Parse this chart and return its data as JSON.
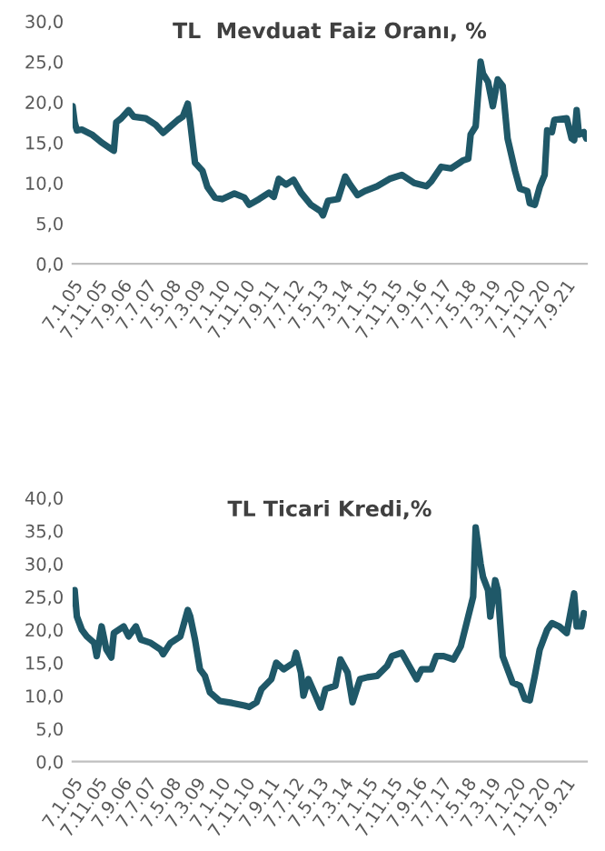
{
  "chart_data": [
    {
      "type": "line",
      "title": "TL  Mevduat Faiz Oranı, %",
      "legend": false,
      "grid": false,
      "line_style": "solid",
      "ylim": [
        0,
        30
      ],
      "yticks": [
        {
          "value": 0,
          "label": "0,0"
        },
        {
          "value": 5,
          "label": "5,0"
        },
        {
          "value": 10,
          "label": "10,0"
        },
        {
          "value": 15,
          "label": "15,0"
        },
        {
          "value": 20,
          "label": "20,0"
        },
        {
          "value": 25,
          "label": "25,0"
        },
        {
          "value": 30,
          "label": "30,0"
        }
      ],
      "xlim": [
        "2005-01-07",
        "2022-06-07"
      ],
      "xticks": [
        {
          "value": "2005-01-07",
          "label": "7.1.05"
        },
        {
          "value": "2005-11-07",
          "label": "7.11.05"
        },
        {
          "value": "2006-09-07",
          "label": "7.9.06"
        },
        {
          "value": "2007-07-07",
          "label": "7.7.07"
        },
        {
          "value": "2008-05-07",
          "label": "7.5.08"
        },
        {
          "value": "2009-03-07",
          "label": "7.3.09"
        },
        {
          "value": "2010-01-07",
          "label": "7.1.10"
        },
        {
          "value": "2010-11-07",
          "label": "7.11.10"
        },
        {
          "value": "2011-09-07",
          "label": "7.9.11"
        },
        {
          "value": "2012-07-07",
          "label": "7.7.12"
        },
        {
          "value": "2013-05-07",
          "label": "7.5.13"
        },
        {
          "value": "2014-03-07",
          "label": "7.3.14"
        },
        {
          "value": "2015-01-07",
          "label": "7.1.15"
        },
        {
          "value": "2015-11-07",
          "label": "7.11.15"
        },
        {
          "value": "2016-09-07",
          "label": "7.9.16"
        },
        {
          "value": "2017-07-07",
          "label": "7.7.17"
        },
        {
          "value": "2018-05-07",
          "label": "7.5.18"
        },
        {
          "value": "2019-03-07",
          "label": "7.3.19"
        },
        {
          "value": "2020-01-07",
          "label": "7.1.20"
        },
        {
          "value": "2020-11-07",
          "label": "7.11.20"
        },
        {
          "value": "2021-09-07",
          "label": "7.9.21"
        }
      ],
      "series": [
        {
          "color": "#1f5868",
          "x": [
            "2005-01-07",
            "2005-02",
            "2005-03",
            "2005-05",
            "2005-09",
            "2006-01",
            "2006-05",
            "2006-06",
            "2006-07",
            "2006-09",
            "2006-12",
            "2007-02",
            "2007-07",
            "2007-11",
            "2008-02",
            "2008-05",
            "2008-08",
            "2008-10",
            "2008-12",
            "2009-01",
            "2009-03",
            "2009-06",
            "2009-08",
            "2009-11",
            "2010-02",
            "2010-07",
            "2010-11",
            "2011-01",
            "2011-05",
            "2011-09",
            "2011-11",
            "2012-01",
            "2012-04",
            "2012-07",
            "2012-10",
            "2013-02",
            "2013-06",
            "2013-07",
            "2013-09",
            "2014-01",
            "2014-04",
            "2014-06",
            "2014-09",
            "2014-12",
            "2015-05",
            "2015-10",
            "2016-03",
            "2016-08",
            "2017-01",
            "2017-03",
            "2017-07",
            "2017-11",
            "2018-04",
            "2018-06",
            "2018-07",
            "2018-09",
            "2018-11",
            "2018-12",
            "2019-02",
            "2019-04",
            "2019-06",
            "2019-08",
            "2019-10",
            "2020-01",
            "2020-03",
            "2020-06",
            "2020-07",
            "2020-09",
            "2020-11",
            "2021-01",
            "2021-02",
            "2021-04",
            "2021-05",
            "2021-10",
            "2021-12",
            "2022-01",
            "2022-02",
            "2022-03",
            "2022-05",
            "2022-06"
          ],
          "values": [
            19.5,
            17.5,
            16.5,
            16.6,
            16.0,
            15.0,
            14.2,
            14.0,
            17.5,
            18.0,
            19.0,
            18.2,
            18.0,
            17.2,
            16.2,
            17.0,
            17.8,
            18.2,
            19.8,
            17.5,
            12.5,
            11.5,
            9.5,
            8.2,
            8.0,
            8.7,
            8.2,
            7.3,
            8.0,
            8.8,
            8.3,
            10.5,
            9.8,
            10.4,
            8.8,
            7.3,
            6.5,
            6.0,
            7.8,
            8.0,
            10.8,
            9.8,
            8.5,
            9.0,
            9.6,
            10.5,
            11.0,
            10.0,
            9.6,
            10.2,
            12.0,
            11.8,
            12.8,
            13.0,
            16.0,
            17.0,
            25.0,
            23.5,
            22.5,
            19.5,
            22.8,
            22.0,
            15.5,
            11.5,
            9.3,
            9.0,
            7.5,
            7.3,
            9.5,
            11.0,
            16.5,
            16.3,
            17.8,
            18.0,
            15.5,
            15.3,
            19.0,
            16.0,
            16.3,
            15.5
          ]
        }
      ]
    },
    {
      "type": "line",
      "title": "TL Ticari Kredi,%",
      "legend": false,
      "grid": false,
      "line_style": "solid",
      "ylim": [
        0,
        40
      ],
      "yticks": [
        {
          "value": 0,
          "label": "0,0"
        },
        {
          "value": 5,
          "label": "5,0"
        },
        {
          "value": 10,
          "label": "10,0"
        },
        {
          "value": 15,
          "label": "15,0"
        },
        {
          "value": 20,
          "label": "20,0"
        },
        {
          "value": 25,
          "label": "25,0"
        },
        {
          "value": 30,
          "label": "30,0"
        },
        {
          "value": 35,
          "label": "35,0"
        },
        {
          "value": 40,
          "label": "40,0"
        }
      ],
      "xlim": [
        "2005-01-07",
        "2022-06-07"
      ],
      "xticks": [
        {
          "value": "2005-01-07",
          "label": "7.1.05"
        },
        {
          "value": "2005-11-07",
          "label": "7.11.05"
        },
        {
          "value": "2006-09-07",
          "label": "7.9.06"
        },
        {
          "value": "2007-07-07",
          "label": "7.7.07"
        },
        {
          "value": "2008-05-07",
          "label": "7.5.08"
        },
        {
          "value": "2009-03-07",
          "label": "7.3.09"
        },
        {
          "value": "2010-01-07",
          "label": "7.1.10"
        },
        {
          "value": "2010-11-07",
          "label": "7.11.10"
        },
        {
          "value": "2011-09-07",
          "label": "7.9.11"
        },
        {
          "value": "2012-07-07",
          "label": "7.7.12"
        },
        {
          "value": "2013-05-07",
          "label": "7.5.13"
        },
        {
          "value": "2014-03-07",
          "label": "7.3.14"
        },
        {
          "value": "2015-01-07",
          "label": "7.1.15"
        },
        {
          "value": "2015-11-07",
          "label": "7.11.15"
        },
        {
          "value": "2016-09-07",
          "label": "7.9.16"
        },
        {
          "value": "2017-07-07",
          "label": "7.7.17"
        },
        {
          "value": "2018-05-07",
          "label": "7.5.18"
        },
        {
          "value": "2019-03-07",
          "label": "7.3.19"
        },
        {
          "value": "2020-01-07",
          "label": "7.1.20"
        },
        {
          "value": "2020-11-07",
          "label": "7.11.20"
        },
        {
          "value": "2021-09-07",
          "label": "7.9.21"
        }
      ],
      "series": [
        {
          "color": "#1f5868",
          "x": [
            "2005-01-07",
            "2005-02",
            "2005-03",
            "2005-05",
            "2005-07",
            "2005-10",
            "2005-11",
            "2006-01",
            "2006-03",
            "2006-05",
            "2006-06",
            "2006-10",
            "2006-12",
            "2007-03",
            "2007-05",
            "2007-09",
            "2008-01",
            "2008-02",
            "2008-05",
            "2008-09",
            "2008-12",
            "2009-01",
            "2009-03",
            "2009-05",
            "2009-07",
            "2009-09",
            "2010-01",
            "2010-06",
            "2010-11",
            "2011-01",
            "2011-04",
            "2011-06",
            "2011-10",
            "2011-12",
            "2012-03",
            "2012-07",
            "2012-08",
            "2012-10",
            "2012-11",
            "2013-01",
            "2013-04",
            "2013-06",
            "2013-08",
            "2013-12",
            "2014-02",
            "2014-05",
            "2014-07",
            "2014-10",
            "2015-01",
            "2015-05",
            "2015-09",
            "2015-11",
            "2016-03",
            "2016-06",
            "2016-09",
            "2016-11",
            "2017-03",
            "2017-05",
            "2017-08",
            "2017-12",
            "2018-03",
            "2018-06",
            "2018-08",
            "2018-09",
            "2018-11",
            "2018-12",
            "2019-02",
            "2019-03",
            "2019-05",
            "2019-06",
            "2019-08",
            "2019-10",
            "2019-12",
            "2020-03",
            "2020-05",
            "2020-07",
            "2020-09",
            "2020-11",
            "2021-02",
            "2021-04",
            "2021-07",
            "2021-10",
            "2022-01",
            "2022-02",
            "2022-04",
            "2022-05"
          ],
          "values": [
            24.0,
            26.0,
            22.0,
            20.0,
            19.0,
            18.0,
            16.0,
            20.5,
            17.0,
            15.8,
            19.5,
            20.5,
            19.0,
            20.5,
            18.5,
            18.0,
            17.0,
            16.3,
            18.0,
            19.0,
            23.0,
            22.0,
            18.5,
            14.0,
            13.0,
            10.5,
            9.2,
            8.9,
            8.5,
            8.3,
            9.0,
            11.0,
            12.5,
            15.0,
            14.0,
            15.0,
            16.5,
            13.5,
            10.0,
            12.5,
            10.0,
            8.2,
            11.0,
            11.5,
            15.5,
            13.5,
            9.0,
            12.5,
            12.8,
            13.0,
            14.5,
            16.0,
            16.5,
            14.5,
            12.5,
            14.0,
            14.0,
            16.0,
            16.0,
            15.5,
            17.5,
            22.0,
            25.0,
            35.5,
            30.0,
            28.0,
            26.0,
            22.0,
            27.5,
            26.0,
            16.0,
            14.0,
            12.0,
            11.5,
            9.5,
            9.3,
            13.0,
            17.0,
            20.0,
            21.0,
            20.5,
            19.5,
            25.5,
            20.5,
            20.5,
            22.5
          ]
        }
      ]
    }
  ]
}
